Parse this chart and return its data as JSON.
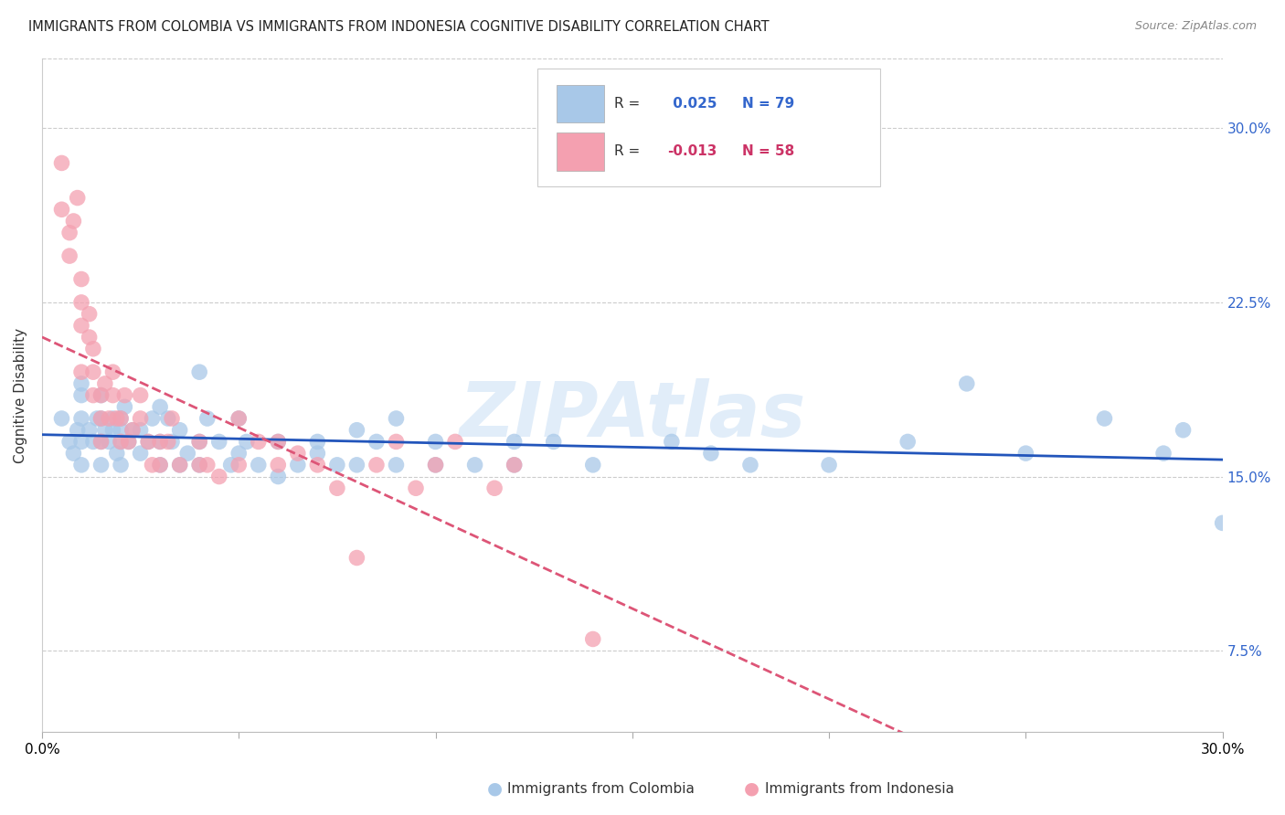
{
  "title": "IMMIGRANTS FROM COLOMBIA VS IMMIGRANTS FROM INDONESIA COGNITIVE DISABILITY CORRELATION CHART",
  "source": "Source: ZipAtlas.com",
  "ylabel": "Cognitive Disability",
  "ytick_labels": [
    "7.5%",
    "15.0%",
    "22.5%",
    "30.0%"
  ],
  "ytick_values": [
    0.075,
    0.15,
    0.225,
    0.3
  ],
  "xlim": [
    0.0,
    0.3
  ],
  "ylim": [
    0.04,
    0.33
  ],
  "colombia_R": 0.025,
  "colombia_N": 79,
  "indonesia_R": -0.013,
  "indonesia_N": 58,
  "colombia_color": "#a8c8e8",
  "indonesia_color": "#f4a0b0",
  "colombia_line_color": "#2255bb",
  "indonesia_line_color": "#dd5577",
  "watermark": "ZIPAtlas",
  "colombia_x": [
    0.005,
    0.007,
    0.008,
    0.009,
    0.01,
    0.01,
    0.01,
    0.01,
    0.01,
    0.012,
    0.013,
    0.014,
    0.015,
    0.015,
    0.015,
    0.015,
    0.016,
    0.017,
    0.018,
    0.018,
    0.019,
    0.02,
    0.02,
    0.02,
    0.02,
    0.021,
    0.022,
    0.023,
    0.025,
    0.025,
    0.027,
    0.028,
    0.03,
    0.03,
    0.03,
    0.032,
    0.033,
    0.035,
    0.035,
    0.037,
    0.04,
    0.04,
    0.04,
    0.042,
    0.045,
    0.048,
    0.05,
    0.05,
    0.052,
    0.055,
    0.06,
    0.06,
    0.065,
    0.07,
    0.07,
    0.075,
    0.08,
    0.08,
    0.085,
    0.09,
    0.09,
    0.1,
    0.1,
    0.11,
    0.12,
    0.12,
    0.13,
    0.14,
    0.16,
    0.17,
    0.18,
    0.2,
    0.22,
    0.235,
    0.25,
    0.27,
    0.285,
    0.29,
    0.3
  ],
  "colombia_y": [
    0.175,
    0.165,
    0.16,
    0.17,
    0.185,
    0.175,
    0.165,
    0.155,
    0.19,
    0.17,
    0.165,
    0.175,
    0.185,
    0.165,
    0.155,
    0.175,
    0.17,
    0.165,
    0.175,
    0.17,
    0.16,
    0.165,
    0.175,
    0.155,
    0.17,
    0.18,
    0.165,
    0.17,
    0.16,
    0.17,
    0.165,
    0.175,
    0.165,
    0.155,
    0.18,
    0.175,
    0.165,
    0.155,
    0.17,
    0.16,
    0.195,
    0.165,
    0.155,
    0.175,
    0.165,
    0.155,
    0.16,
    0.175,
    0.165,
    0.155,
    0.15,
    0.165,
    0.155,
    0.16,
    0.165,
    0.155,
    0.17,
    0.155,
    0.165,
    0.155,
    0.175,
    0.155,
    0.165,
    0.155,
    0.165,
    0.155,
    0.165,
    0.155,
    0.165,
    0.16,
    0.155,
    0.155,
    0.165,
    0.19,
    0.16,
    0.175,
    0.16,
    0.17,
    0.13
  ],
  "indonesia_x": [
    0.005,
    0.005,
    0.007,
    0.007,
    0.008,
    0.009,
    0.01,
    0.01,
    0.01,
    0.01,
    0.012,
    0.012,
    0.013,
    0.013,
    0.013,
    0.015,
    0.015,
    0.015,
    0.016,
    0.017,
    0.018,
    0.018,
    0.019,
    0.02,
    0.02,
    0.021,
    0.022,
    0.023,
    0.025,
    0.025,
    0.027,
    0.028,
    0.03,
    0.03,
    0.032,
    0.033,
    0.035,
    0.04,
    0.04,
    0.042,
    0.045,
    0.05,
    0.05,
    0.055,
    0.06,
    0.06,
    0.065,
    0.07,
    0.075,
    0.08,
    0.085,
    0.09,
    0.095,
    0.1,
    0.105,
    0.115,
    0.12,
    0.14
  ],
  "indonesia_y": [
    0.265,
    0.285,
    0.245,
    0.255,
    0.26,
    0.27,
    0.195,
    0.215,
    0.235,
    0.225,
    0.21,
    0.22,
    0.185,
    0.195,
    0.205,
    0.175,
    0.185,
    0.165,
    0.19,
    0.175,
    0.185,
    0.195,
    0.175,
    0.165,
    0.175,
    0.185,
    0.165,
    0.17,
    0.175,
    0.185,
    0.165,
    0.155,
    0.155,
    0.165,
    0.165,
    0.175,
    0.155,
    0.155,
    0.165,
    0.155,
    0.15,
    0.155,
    0.175,
    0.165,
    0.155,
    0.165,
    0.16,
    0.155,
    0.145,
    0.115,
    0.155,
    0.165,
    0.145,
    0.155,
    0.165,
    0.145,
    0.155,
    0.08
  ]
}
